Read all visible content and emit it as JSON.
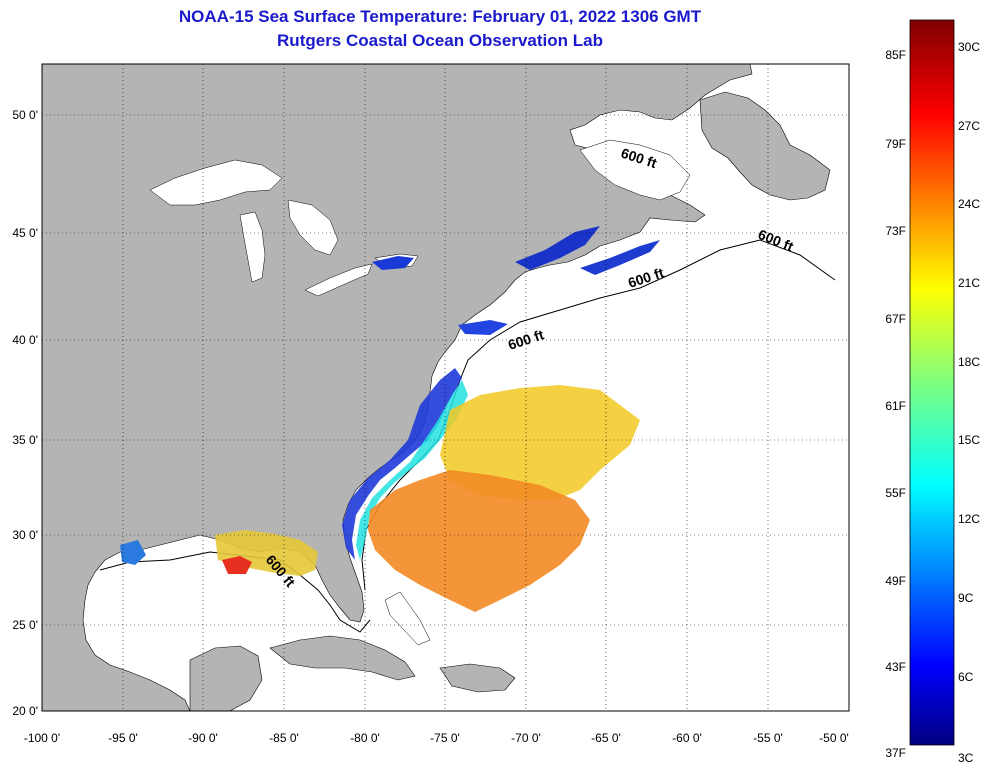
{
  "title_line1": "NOAA-15 Sea Surface Temperature:  February 01, 2022 1306 GMT",
  "title_line2": "Rutgers Coastal Ocean Observation Lab",
  "lon_ticks": [
    "-100 0'",
    "-95 0'",
    "-90 0'",
    "-85 0'",
    "-80 0'",
    "-75 0'",
    "-70 0'",
    "-65 0'",
    "-60 0'",
    "-55 0'",
    "-50 0'"
  ],
  "lat_ticks": [
    "50 0'",
    "45 0'",
    "40 0'",
    "35 0'",
    "30 0'",
    "25 0'",
    "20 0'"
  ],
  "contour_label": "600 ft",
  "colorbar": {
    "f_labels": [
      "85F",
      "79F",
      "73F",
      "67F",
      "61F",
      "55F",
      "49F",
      "43F",
      "37F"
    ],
    "c_labels": [
      "30C",
      "27C",
      "24C",
      "21C",
      "18C",
      "15C",
      "12C",
      "9C",
      "6C",
      "3C"
    ]
  },
  "colors": {
    "land": "#b4b4b4",
    "ocean": "#ffffff",
    "title": "#1a1acc"
  }
}
